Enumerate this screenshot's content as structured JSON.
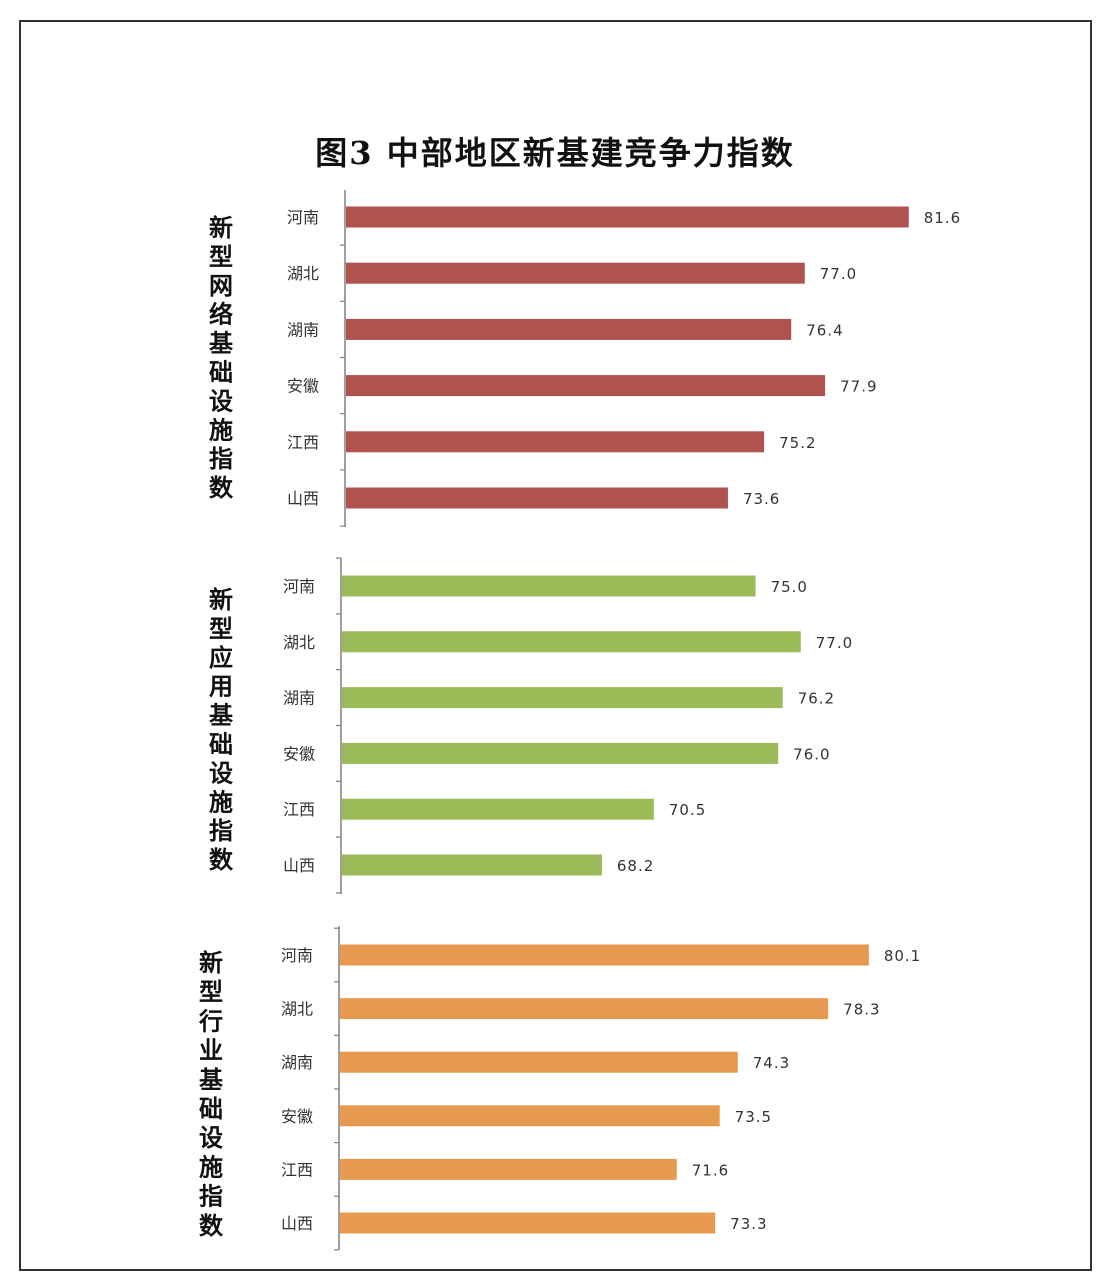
{
  "title": "图3 中部地区新基建竞争力指数",
  "colors": {
    "group1": "#b0524d",
    "group2": "#9bbb59",
    "group3": "#e69a50"
  },
  "chart_data": [
    {
      "type": "bar",
      "orientation": "horizontal",
      "group_label": "新型网络基础设施指数",
      "categories": [
        "河南",
        "湖北",
        "湖南",
        "安徽",
        "江西",
        "山西"
      ],
      "values": [
        81.6,
        77.0,
        76.4,
        77.9,
        75.2,
        73.6
      ],
      "data_labels": [
        "81.6",
        "77.0",
        "76.4",
        "77.9",
        "75.2",
        "73.6"
      ],
      "color": "#b0524d"
    },
    {
      "type": "bar",
      "orientation": "horizontal",
      "group_label": "新型应用基础设施指数",
      "categories": [
        "河南",
        "湖北",
        "湖南",
        "安徽",
        "江西",
        "山西"
      ],
      "values": [
        75.0,
        77.0,
        76.2,
        76.0,
        70.5,
        68.2
      ],
      "data_labels": [
        "75.0",
        "77.0",
        "76.2",
        "76.0",
        "70.5",
        "68.2"
      ],
      "color": "#9bbb59"
    },
    {
      "type": "bar",
      "orientation": "horizontal",
      "group_label": "新型行业基础设施指数",
      "categories": [
        "河南",
        "湖北",
        "湖南",
        "安徽",
        "江西",
        "山西"
      ],
      "values": [
        80.1,
        78.3,
        74.3,
        73.5,
        71.6,
        73.3
      ],
      "data_labels": [
        "80.1",
        "78.3",
        "74.3",
        "73.5",
        "71.6",
        "73.3"
      ],
      "color": "#e69a50"
    }
  ]
}
